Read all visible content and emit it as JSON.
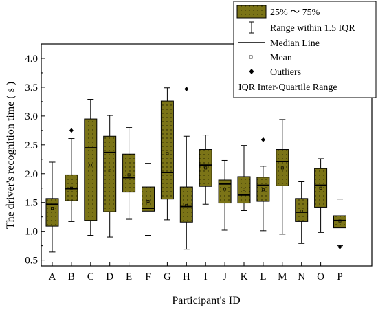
{
  "chart_data": {
    "type": "box",
    "title": "",
    "xlabel": "Participant's ID",
    "ylabel": "The driver's recognition time ( s )",
    "ylim": [
      0.4,
      4.25
    ],
    "yticks": [
      "0.5",
      "1.0",
      "1.5",
      "2.0",
      "2.5",
      "3.0",
      "3.5",
      "4.0"
    ],
    "box_color": "#7b7417",
    "categories": [
      "A",
      "B",
      "C",
      "D",
      "E",
      "F",
      "G",
      "H",
      "I",
      "J",
      "K",
      "L",
      "M",
      "N",
      "O",
      "P"
    ],
    "boxes": [
      {
        "id": "A",
        "whisker_low": 0.64,
        "q1": 1.09,
        "median": 1.47,
        "q3": 1.57,
        "whisker_high": 2.2,
        "mean": 1.4,
        "outliers": []
      },
      {
        "id": "B",
        "whisker_low": 1.17,
        "q1": 1.53,
        "median": 1.74,
        "q3": 1.98,
        "whisker_high": 2.61,
        "mean": 1.75,
        "outliers": [
          2.75
        ]
      },
      {
        "id": "C",
        "whisker_low": 0.93,
        "q1": 1.19,
        "median": 2.45,
        "q3": 2.95,
        "whisker_high": 3.29,
        "mean": 2.15,
        "outliers": []
      },
      {
        "id": "D",
        "whisker_low": 0.9,
        "q1": 1.34,
        "median": 2.37,
        "q3": 2.65,
        "whisker_high": 3.01,
        "mean": 2.05,
        "outliers": []
      },
      {
        "id": "E",
        "whisker_low": 1.21,
        "q1": 1.68,
        "median": 1.93,
        "q3": 2.34,
        "whisker_high": 2.8,
        "mean": 1.98,
        "outliers": []
      },
      {
        "id": "F",
        "whisker_low": 0.93,
        "q1": 1.35,
        "median": 1.4,
        "q3": 1.77,
        "whisker_high": 2.18,
        "mean": 1.52,
        "outliers": []
      },
      {
        "id": "G",
        "whisker_low": 1.2,
        "q1": 1.56,
        "median": 2.02,
        "q3": 3.26,
        "whisker_high": 3.49,
        "mean": 2.35,
        "outliers": []
      },
      {
        "id": "H",
        "whisker_low": 0.69,
        "q1": 1.16,
        "median": 1.43,
        "q3": 1.77,
        "whisker_high": 2.65,
        "mean": 1.45,
        "outliers": [
          3.47
        ]
      },
      {
        "id": "I",
        "whisker_low": 1.47,
        "q1": 1.78,
        "median": 2.15,
        "q3": 2.42,
        "whisker_high": 2.67,
        "mean": 2.1,
        "outliers": []
      },
      {
        "id": "J",
        "whisker_low": 1.02,
        "q1": 1.49,
        "median": 1.82,
        "q3": 1.89,
        "whisker_high": 2.23,
        "mean": 1.73,
        "outliers": []
      },
      {
        "id": "K",
        "whisker_low": 1.36,
        "q1": 1.49,
        "median": 1.63,
        "q3": 1.95,
        "whisker_high": 2.49,
        "mean": 1.73,
        "outliers": []
      },
      {
        "id": "L",
        "whisker_low": 1.01,
        "q1": 1.52,
        "median": 1.8,
        "q3": 1.94,
        "whisker_high": 2.13,
        "mean": 1.72,
        "outliers": [
          2.59
        ]
      },
      {
        "id": "M",
        "whisker_low": 0.95,
        "q1": 1.79,
        "median": 2.21,
        "q3": 2.42,
        "whisker_high": 2.94,
        "mean": 2.1,
        "outliers": []
      },
      {
        "id": "N",
        "whisker_low": 0.79,
        "q1": 1.17,
        "median": 1.33,
        "q3": 1.57,
        "whisker_high": 1.86,
        "mean": 1.35,
        "outliers": []
      },
      {
        "id": "O",
        "whisker_low": 0.98,
        "q1": 1.42,
        "median": 1.8,
        "q3": 2.09,
        "whisker_high": 2.26,
        "mean": 1.75,
        "outliers": []
      },
      {
        "id": "P",
        "whisker_low": 0.75,
        "q1": 1.06,
        "median": 1.19,
        "q3": 1.27,
        "whisker_high": 1.56,
        "mean": 1.18,
        "outliers": [
          0.73
        ]
      }
    ],
    "legend": {
      "position": "top-right",
      "entries": [
        {
          "key": "box",
          "label": "25% ～ 75%"
        },
        {
          "key": "range",
          "label": "Range within 1.5 IQR"
        },
        {
          "key": "median",
          "label": "Median Line"
        },
        {
          "key": "mean",
          "label": "Mean"
        },
        {
          "key": "outliers",
          "label": "Outliers"
        },
        {
          "key": "iqr",
          "label": "IQR  Inter-Quartile Range"
        }
      ]
    }
  }
}
